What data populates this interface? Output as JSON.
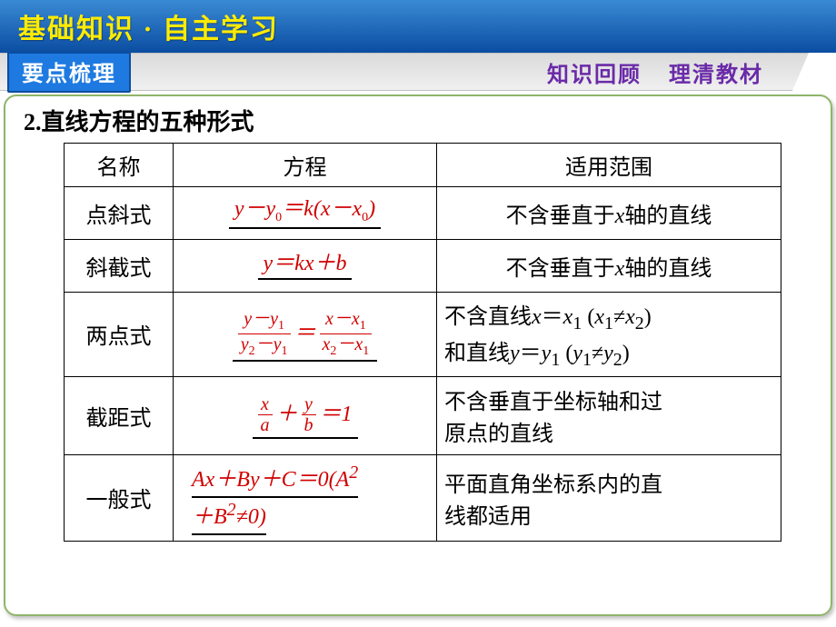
{
  "header": {
    "title": "基础知识 · 自主学习",
    "tag": "要点梳理",
    "right1": "知识回顾",
    "right2": "理清教材"
  },
  "section": {
    "number_title": "2.直线方程的五种形式"
  },
  "table": {
    "headers": {
      "c1": "名称",
      "c2": "方程",
      "c3": "适用范围"
    },
    "rows": [
      {
        "name": "点斜式",
        "eq_html": "y－y<sub>0</sub>＝k(x－x<sub>0</sub>)",
        "scope_html": "不含垂直于<span class='italic'>x</span>轴的直线"
      },
      {
        "name": "斜截式",
        "eq_html": "y＝kx＋b",
        "scope_html": "不含垂直于<span class='italic'>x</span>轴的直线"
      },
      {
        "name": "两点式",
        "eq_frac": {
          "l_num": "y－y<sub>1</sub>",
          "l_den": "y<sub>2</sub>－y<sub>1</sub>",
          "r_num": "x－x<sub>1</sub>",
          "r_den": "x<sub>2</sub>－x<sub>1</sub>"
        },
        "scope_html": "不含直线<span class='italic'>x</span>＝<span class='italic'>x</span><sub>1</sub> (<span class='italic'>x</span><sub>1</sub>≠<span class='italic'>x</span><sub>2</sub>)<br>和直线<span class='italic'>y</span>＝<span class='italic'>y</span><sub>1</sub> (<span class='italic'>y</span><sub>1</sub>≠<span class='italic'>y</span><sub>2</sub>)"
      },
      {
        "name": "截距式",
        "eq_frac2": {
          "l_num": "x",
          "l_den": "a",
          "r_num": "y",
          "r_den": "b",
          "tail": "＝1"
        },
        "scope_html": "不含垂直于坐标轴和过<br>原点的直线"
      },
      {
        "name": "一般式",
        "eq_general": {
          "line1": "Ax＋By＋C＝0(A<sup>2</sup>",
          "line2": "＋B<sup>2</sup>≠0)"
        },
        "scope_html": "平面直角坐标系内的直<br>线都适用"
      }
    ]
  },
  "colors": {
    "header_grad_top": "#3a8ad4",
    "header_grad_bottom": "#0b4da1",
    "title_color": "#ffeb00",
    "tag_bg": "#1e7ae0",
    "purple": "#6a2aa8",
    "equation_red": "#d00000",
    "frame_border": "#8fb56a"
  }
}
